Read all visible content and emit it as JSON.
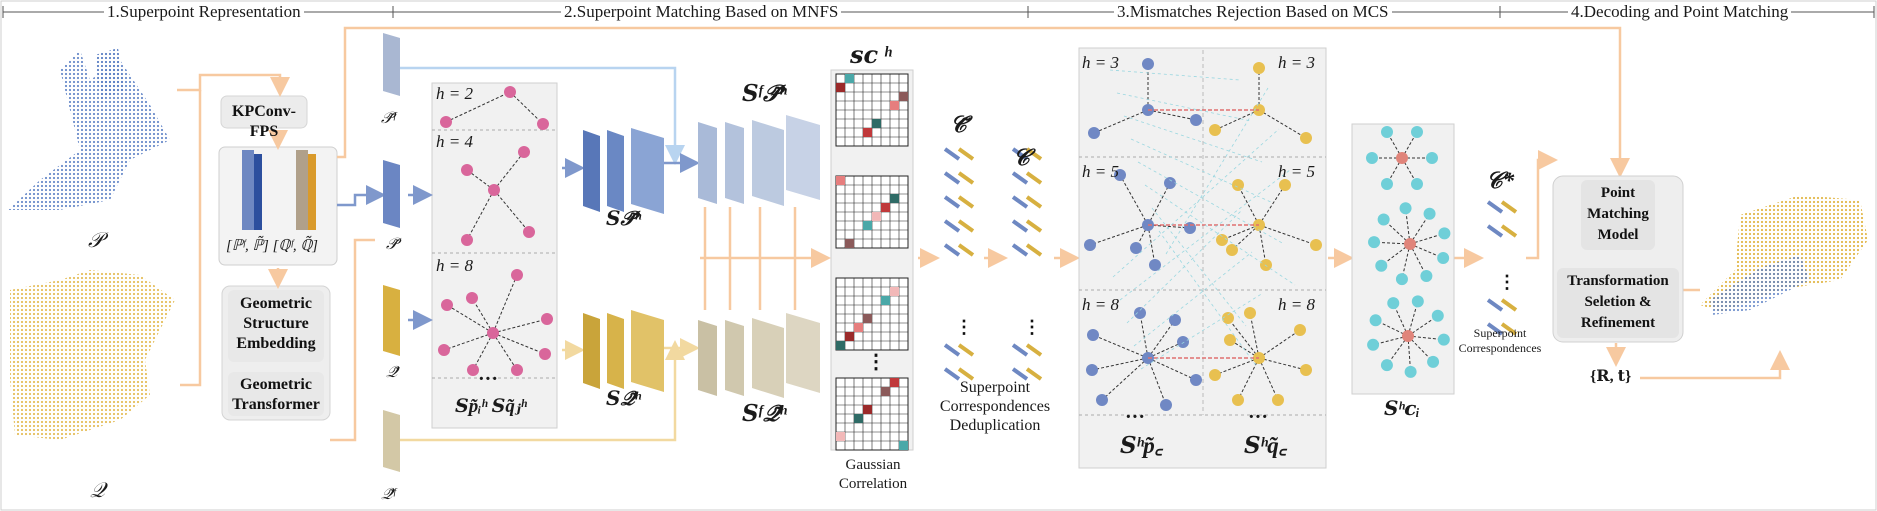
{
  "sections": [
    {
      "label": "1.Superpoint Representation"
    },
    {
      "label": "2.Superpoint Matching Based on MNFS"
    },
    {
      "label": "3.Mismatches Rejection Based on MCS"
    },
    {
      "label": "4.Decoding and Point Matching"
    }
  ],
  "inputs": {
    "source": "𝒫",
    "target": "𝒬"
  },
  "encoder": {
    "kpconv": "KPConv-FPS",
    "features": "[ℙᶠ, ℙ̃]  [ℚᶠ, ℚ̃]",
    "gse": [
      "Geometric",
      "Structure",
      "Embedding"
    ],
    "transformer": [
      "Geometric",
      "Transformer"
    ]
  },
  "superpoints": {
    "p_feat": "𝒫̃ᶠ",
    "p": "𝒫̃",
    "q": "𝒬̃",
    "q_feat": "𝒬̃ᶠ"
  },
  "neighborhood": {
    "levels": [
      "h = 2",
      "h = 4",
      "h = 8"
    ],
    "set_labels": "𝑺p̃ᵢʰ  𝑺q̃ⱼʰ"
  },
  "mnfs": {
    "s_p": "𝑺𝒫̃ʰ",
    "s_q": "𝑺𝒬̃ʰ",
    "sf_p": "𝑺ᶠ𝒫̃ʰ",
    "sf_q": "𝑺ᶠ𝒬̃ʰ",
    "sc_title": "𝒔𝒄 ʰ",
    "correlation": [
      "Gaussian",
      "Correlation"
    ]
  },
  "correspondences": {
    "c_tilde": "𝒞̃",
    "c": "𝒞",
    "dedup": [
      "Superpoint",
      "Correspondences",
      "Deduplication"
    ]
  },
  "mcs": {
    "left_levels": [
      "h = 3",
      "h = 5",
      "h = 8"
    ],
    "right_levels": [
      "h = 3",
      "h = 5",
      "h = 8"
    ],
    "s_p": "𝑺ʰp̃꜀",
    "s_q": "𝑺ʰq̃꜀",
    "s_c": "𝑺ʰ𝒄ᵢ"
  },
  "final": {
    "c_star": "𝒞*",
    "corr_label": [
      "Superpoint",
      "Correspondences"
    ],
    "pmm": [
      "Point",
      "Matching",
      "Model"
    ],
    "tsr": [
      "Transformation",
      "Seletion &",
      "Refinement"
    ],
    "rt": "{𝐑, 𝐭}"
  },
  "colors": {
    "blue": "#7b93c8",
    "blue_dark": "#5a74ad",
    "yellow": "#e8c25a",
    "yellow_dark": "#c9a036",
    "orange_arrow": "#f7c9a0",
    "pink": "#d9669b",
    "teal": "#6fcfd8",
    "red_center": "#e0847a",
    "panel_gray": "#efefef",
    "light_blue_line": "#b8d4f0"
  }
}
